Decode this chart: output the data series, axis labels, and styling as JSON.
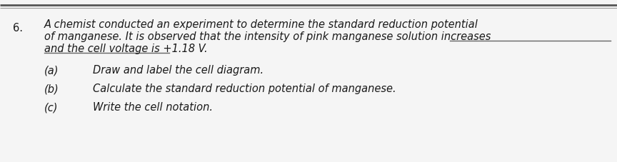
{
  "background_color": "#f5f5f5",
  "page_background": "#f5f5f5",
  "question_number": "6.",
  "intro_line1": "A chemist conducted an experiment to determine the standard reduction potential",
  "intro_line2": "of manganese. It is observed that the intensity of pink manganese solution increases",
  "intro_line3": "and the cell voltage is +1.18 V.",
  "parts": [
    {
      "label": "(a)",
      "text": "Draw and label the cell diagram."
    },
    {
      "label": "(b)",
      "text": "Calculate the standard reduction potential of manganese."
    },
    {
      "label": "(c)",
      "text": "Write the cell notation."
    }
  ],
  "font_size_intro": 10.5,
  "font_size_parts": 10.5,
  "text_color": "#1a1a1a",
  "figsize": [
    8.64,
    2.27
  ],
  "dpi": 100,
  "top_line1_color": "#555555",
  "top_line2_color": "#999999",
  "underline_color": "#666666"
}
